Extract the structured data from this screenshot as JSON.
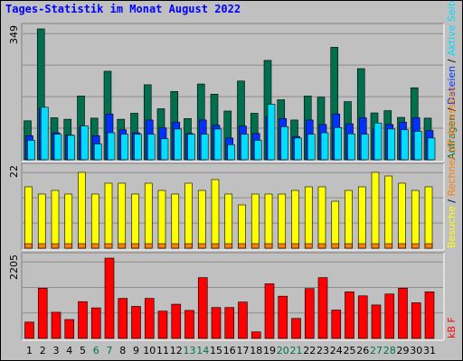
{
  "title": "Tages-Statistik im Monat August 2022",
  "colors": {
    "hits": "#006f4d",
    "files": "#0031ff",
    "pages": "#00ddff",
    "visits": "#ffff00",
    "sites": "#ff8000",
    "kbytes": "#ff0000",
    "weekend_label": "#006f4d",
    "weekday_label": "#000000"
  },
  "chart_data": [
    {
      "type": "bar",
      "panel": "top",
      "categories": [
        "1",
        "2",
        "3",
        "4",
        "5",
        "6",
        "7",
        "8",
        "9",
        "10",
        "11",
        "12",
        "13",
        "14",
        "15",
        "16",
        "17",
        "18",
        "19",
        "20",
        "21",
        "22",
        "23",
        "24",
        "25",
        "26",
        "27",
        "28",
        "29",
        "30",
        "31"
      ],
      "y_max_label": "349",
      "ylim": [
        0,
        349
      ],
      "side_label": {
        "parts": [
          "Anfragen",
          " / ",
          "Dateien",
          " / ",
          "Aktive Seiten"
        ],
        "colors": [
          "#006f4d",
          "#000000",
          "#0031ff",
          "#000000",
          "#00ddff"
        ]
      },
      "series": [
        {
          "name": "Anfragen",
          "color": "#006f4d",
          "values": [
            104,
            349,
            112,
            108,
            170,
            111,
            236,
            108,
            124,
            200,
            136,
            182,
            110,
            202,
            175,
            130,
            210,
            124,
            265,
            160,
            106,
            170,
            167,
            300,
            155,
            243,
            125,
            131,
            113,
            192,
            111
          ]
        },
        {
          "name": "Dateien",
          "color": "#0031ff",
          "values": [
            64,
            138,
            72,
            66,
            88,
            64,
            122,
            80,
            72,
            106,
            85,
            100,
            70,
            106,
            92,
            58,
            90,
            70,
            114,
            110,
            62,
            106,
            94,
            122,
            96,
            112,
            82,
            94,
            100,
            112,
            78
          ]
        },
        {
          "name": "Aktive Seiten",
          "color": "#00ddff",
          "values": [
            52,
            140,
            68,
            65,
            90,
            42,
            72,
            68,
            68,
            68,
            56,
            82,
            68,
            68,
            82,
            40,
            68,
            52,
            148,
            88,
            58,
            68,
            72,
            86,
            69,
            68,
            98,
            82,
            80,
            76,
            58
          ]
        }
      ]
    },
    {
      "type": "bar",
      "panel": "middle",
      "categories": [
        "1",
        "2",
        "3",
        "4",
        "5",
        "6",
        "7",
        "8",
        "9",
        "10",
        "11",
        "12",
        "13",
        "14",
        "15",
        "16",
        "17",
        "18",
        "19",
        "20",
        "21",
        "22",
        "23",
        "24",
        "25",
        "26",
        "27",
        "28",
        "29",
        "30",
        "31"
      ],
      "y_max_label": "22",
      "ylim": [
        0,
        22
      ],
      "side_label": {
        "parts": [
          "Besuche",
          " / ",
          "Rechner (IP-Adressen)"
        ],
        "colors": [
          "#ffff00",
          "#000000",
          "#ff8000"
        ]
      },
      "series": [
        {
          "name": "Besuche",
          "color": "#ffff00",
          "values": [
            17,
            15,
            16,
            15,
            21,
            15,
            18,
            18,
            15,
            18,
            16,
            15,
            18,
            16,
            19,
            15,
            12,
            15,
            15,
            15,
            16,
            17,
            17,
            13,
            16,
            17,
            21,
            20,
            18,
            16,
            17
          ]
        },
        {
          "name": "Rechner (IP-Adressen)",
          "color": "#ff8000",
          "values": [
            1,
            1,
            1,
            1,
            1,
            1,
            1,
            1,
            1,
            1,
            1,
            1,
            1,
            1,
            1,
            1,
            1,
            1,
            1,
            1,
            1,
            1,
            1,
            1,
            1,
            1,
            1,
            1,
            1,
            1,
            1
          ]
        }
      ]
    },
    {
      "type": "bar",
      "panel": "bottom",
      "categories": [
        "1",
        "2",
        "3",
        "4",
        "5",
        "6",
        "7",
        "8",
        "9",
        "10",
        "11",
        "12",
        "13",
        "14",
        "15",
        "16",
        "17",
        "18",
        "19",
        "20",
        "21",
        "22",
        "23",
        "24",
        "25",
        "26",
        "27",
        "28",
        "29",
        "30",
        "31"
      ],
      "y_max_label": "2205",
      "ylim": [
        0,
        2205
      ],
      "side_label": {
        "parts": [
          "kB F"
        ],
        "colors": [
          "#ff0000"
        ]
      },
      "series": [
        {
          "name": "kB F",
          "color": "#ff0000",
          "values": [
            450,
            1380,
            720,
            520,
            1010,
            840,
            2205,
            1100,
            880,
            1100,
            750,
            940,
            770,
            1670,
            850,
            850,
            1000,
            180,
            1500,
            1160,
            550,
            1370,
            1670,
            780,
            1280,
            1170,
            920,
            1220,
            1380,
            980,
            1280
          ]
        }
      ]
    }
  ],
  "x_axis": {
    "labels": [
      "1",
      "2",
      "3",
      "4",
      "5",
      "6",
      "7",
      "8",
      "9",
      "10",
      "11",
      "12",
      "13",
      "14",
      "15",
      "16",
      "17",
      "18",
      "19",
      "20",
      "21",
      "22",
      "23",
      "24",
      "25",
      "26",
      "27",
      "28",
      "29",
      "30",
      "31"
    ],
    "weekend": [
      false,
      false,
      false,
      false,
      false,
      true,
      true,
      false,
      false,
      false,
      false,
      false,
      true,
      true,
      false,
      false,
      false,
      false,
      false,
      true,
      true,
      false,
      false,
      false,
      false,
      false,
      true,
      true,
      false,
      false,
      false
    ]
  }
}
